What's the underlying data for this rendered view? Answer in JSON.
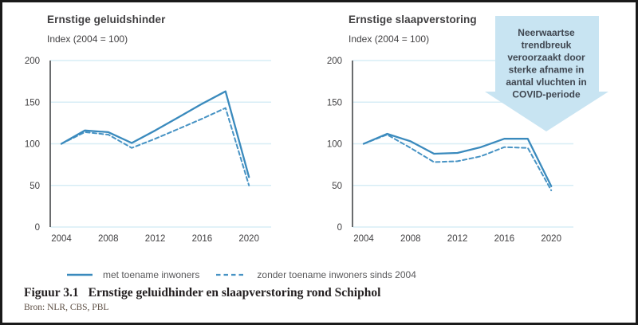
{
  "figure": {
    "caption_label": "Figuur 3.1",
    "caption_title": "Ernstige geluidhinder en slaapverstoring rond Schiphol",
    "source": "Bron: NLR, CBS, PBL"
  },
  "legend": [
    {
      "label": "met toename inwoners",
      "style": "solid"
    },
    {
      "label": "zonder toename inwoners sinds 2004",
      "style": "dashed"
    }
  ],
  "annotation": {
    "shape": "down-arrow",
    "lines": [
      "Neerwaartse",
      "trendbreuk",
      "veroorzaakt door",
      "sterke afname in",
      "aantal vluchten in",
      "COVID-periode"
    ]
  },
  "colors": {
    "line_blue": "#3a8abd",
    "dashed_blue": "#4793c4",
    "grid_blue": "#d7edf6",
    "axis_gray": "#5a5b5e",
    "text_gray": "#414042",
    "legend_gray": "#58585a",
    "arrow_fill": "#c8e4f2",
    "arrow_text": "#3f4650",
    "caption_black": "#231f20",
    "source_brown": "#5d4f44"
  },
  "chart_data": [
    {
      "type": "line",
      "title": "Ernstige geluidshinder",
      "subtitle": "Index (2004 = 100)",
      "x": [
        2004,
        2006,
        2008,
        2010,
        2012,
        2014,
        2016,
        2018,
        2020
      ],
      "series": [
        {
          "name": "met toename inwoners",
          "style": "solid",
          "values": [
            100,
            116,
            114,
            101,
            116,
            132,
            148,
            163,
            60
          ]
        },
        {
          "name": "zonder toename inwoners sinds 2004",
          "style": "dashed",
          "values": [
            100,
            114,
            111,
            95,
            106,
            118,
            130,
            143,
            50
          ]
        }
      ],
      "ylim": [
        0,
        200
      ],
      "yticks": [
        0,
        50,
        100,
        150,
        200
      ],
      "xticks": [
        2004,
        2008,
        2012,
        2016,
        2020
      ],
      "grid": true,
      "legend_position": "bottom"
    },
    {
      "type": "line",
      "title": "Ernstige slaapverstoring",
      "subtitle": "Index (2004 = 100)",
      "x": [
        2004,
        2006,
        2008,
        2010,
        2012,
        2014,
        2016,
        2018,
        2020
      ],
      "series": [
        {
          "name": "met toename inwoners",
          "style": "solid",
          "values": [
            100,
            112,
            103,
            88,
            89,
            96,
            106,
            106,
            49
          ]
        },
        {
          "name": "zonder toename inwoners sinds 2004",
          "style": "dashed",
          "values": [
            100,
            111,
            95,
            78,
            79,
            85,
            96,
            95,
            44
          ]
        }
      ],
      "ylim": [
        0,
        200
      ],
      "yticks": [
        0,
        50,
        100,
        150,
        200
      ],
      "xticks": [
        2004,
        2008,
        2012,
        2016,
        2020
      ],
      "grid": true,
      "legend_position": "bottom"
    }
  ]
}
